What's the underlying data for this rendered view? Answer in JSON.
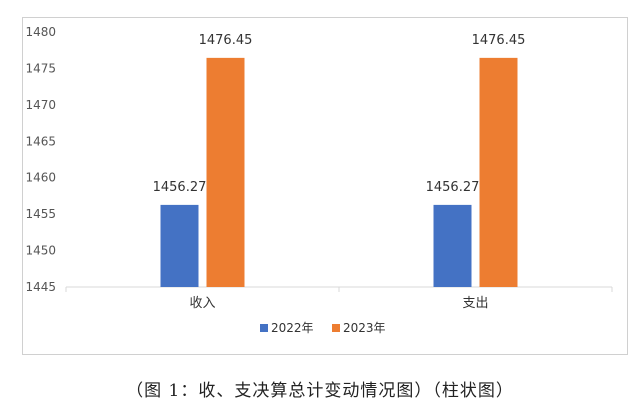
{
  "caption": "（图 1：收、支决算总计变动情况图）（柱状图）",
  "chart_data": {
    "type": "bar",
    "categories": [
      "收入",
      "支出"
    ],
    "series": [
      {
        "name": "2022年",
        "values": [
          1456.27,
          1456.27
        ],
        "color": "#4472C4"
      },
      {
        "name": "2023年",
        "values": [
          1476.45,
          1476.45
        ],
        "color": "#ED7D31"
      }
    ],
    "title": "",
    "xlabel": "",
    "ylabel": "",
    "ylim": [
      1445,
      1480
    ],
    "yticks": [
      1445,
      1450,
      1455,
      1460,
      1465,
      1470,
      1475,
      1480
    ],
    "data_labels": [
      "1456.27",
      "1476.45"
    ],
    "grid": false,
    "legend": "bottom"
  }
}
